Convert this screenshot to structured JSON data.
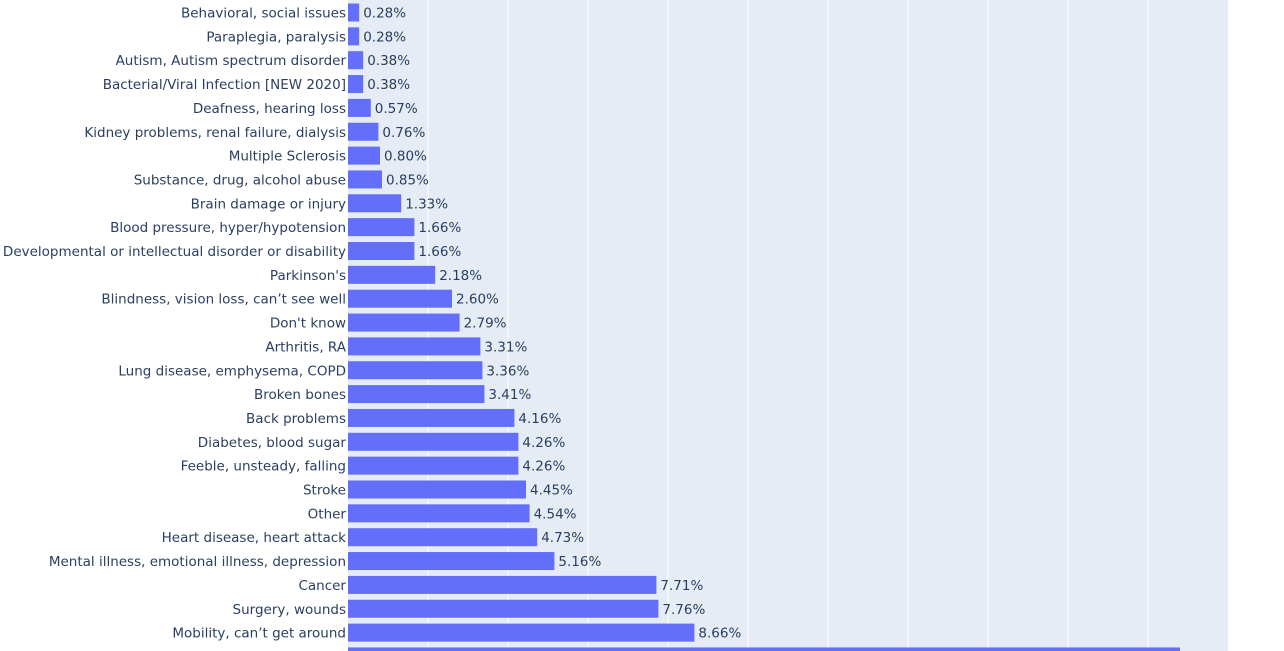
{
  "chart_data": {
    "type": "bar",
    "orientation": "horizontal",
    "title": "",
    "xlabel": "",
    "ylabel": "",
    "xlim": [
      0,
      22
    ],
    "grid": true,
    "colors": {
      "bar": "#636efa",
      "plot_bg": "#e5ecf6",
      "grid": "#ffffff",
      "text": "#2a3f5f"
    },
    "categories": [
      "Behavioral, social issues",
      "Paraplegia, paralysis",
      "Autism, Autism spectrum disorder",
      "Bacterial/Viral Infection [NEW 2020]",
      "Deafness, hearing loss",
      "Kidney problems, renal failure, dialysis",
      "Multiple Sclerosis",
      "Substance, drug, alcohol abuse",
      "Brain damage or injury",
      "Blood pressure, hyper/hypotension",
      "Developmental or intellectual disorder or disability",
      "Parkinson's",
      "Blindness, vision loss, can’t see well",
      "Don't know",
      "Arthritis, RA",
      "Lung disease, emphysema, COPD",
      "Broken bones",
      "Back problems",
      "Diabetes, blood sugar",
      "Feeble, unsteady, falling",
      "Stroke",
      "Other",
      "Heart disease, heart attack",
      "Mental illness, emotional illness, depression",
      "Cancer",
      "Surgery, wounds",
      "Mobility, can’t get around",
      ""
    ],
    "values": [
      0.28,
      0.28,
      0.38,
      0.38,
      0.57,
      0.76,
      0.8,
      0.85,
      1.33,
      1.66,
      1.66,
      2.18,
      2.6,
      2.79,
      3.31,
      3.36,
      3.41,
      4.16,
      4.26,
      4.26,
      4.45,
      4.54,
      4.73,
      5.16,
      7.71,
      7.76,
      8.66,
      20.8
    ],
    "value_labels": [
      "0.28%",
      "0.28%",
      "0.38%",
      "0.38%",
      "0.57%",
      "0.76%",
      "0.80%",
      "0.85%",
      "1.33%",
      "1.66%",
      "1.66%",
      "2.18%",
      "2.60%",
      "2.79%",
      "3.31%",
      "3.36%",
      "3.41%",
      "4.16%",
      "4.26%",
      "4.26%",
      "4.45%",
      "4.54%",
      "4.73%",
      "5.16%",
      "7.71%",
      "7.76%",
      "8.66%",
      ""
    ]
  }
}
